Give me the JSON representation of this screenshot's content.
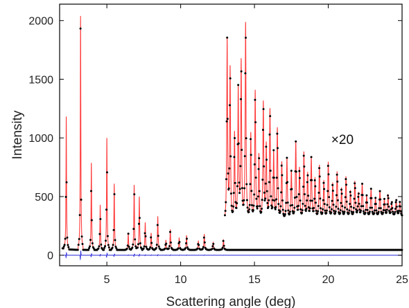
{
  "chart_data": {
    "type": "line",
    "title": "",
    "xlabel": "Scattering angle (deg)",
    "ylabel": "Intensity",
    "xlim": [
      1.8,
      25
    ],
    "ylim": [
      -90,
      2140
    ],
    "x_ticks": [
      5,
      10,
      15,
      20,
      25
    ],
    "y_ticks": [
      0,
      500,
      1000,
      1500,
      2000
    ],
    "grid": false,
    "legend": "none",
    "annotations": [
      {
        "text": "×20",
        "x": 20.2,
        "y": 990
      }
    ],
    "colors": {
      "calculated": "#ff3b3b",
      "observed": "#000000",
      "difference": "#2323d8"
    },
    "series": [
      {
        "role": "calculated",
        "style": "line",
        "peaks_low_angle": [
          {
            "x": 2.25,
            "y": 1190
          },
          {
            "x": 3.22,
            "y": 2040
          },
          {
            "x": 3.95,
            "y": 790
          },
          {
            "x": 4.55,
            "y": 430
          },
          {
            "x": 5.0,
            "y": 1000
          },
          {
            "x": 5.5,
            "y": 610
          },
          {
            "x": 6.45,
            "y": 190
          },
          {
            "x": 6.85,
            "y": 600
          },
          {
            "x": 7.2,
            "y": 500
          },
          {
            "x": 7.6,
            "y": 280
          },
          {
            "x": 8.0,
            "y": 190
          },
          {
            "x": 8.45,
            "y": 330
          },
          {
            "x": 9.0,
            "y": 130
          },
          {
            "x": 9.3,
            "y": 220
          },
          {
            "x": 9.9,
            "y": 150
          },
          {
            "x": 10.4,
            "y": 170
          },
          {
            "x": 11.2,
            "y": 120
          },
          {
            "x": 11.6,
            "y": 180
          },
          {
            "x": 12.2,
            "y": 110
          },
          {
            "x": 12.9,
            "y": 130
          }
        ],
        "baseline_low_angle": 45,
        "scaled_region": {
          "factor": 20,
          "x_start": 13.0,
          "x_end": 25.0,
          "baseline_start": 270,
          "baseline_end": 330,
          "peaks": [
            {
              "x": 13.15,
              "y": 1820
            },
            {
              "x": 13.35,
              "y": 1580
            },
            {
              "x": 13.65,
              "y": 1040
            },
            {
              "x": 13.9,
              "y": 1400
            },
            {
              "x": 14.1,
              "y": 1650
            },
            {
              "x": 14.4,
              "y": 1990
            },
            {
              "x": 14.75,
              "y": 1050
            },
            {
              "x": 15.05,
              "y": 1400
            },
            {
              "x": 15.3,
              "y": 850
            },
            {
              "x": 15.6,
              "y": 1300
            },
            {
              "x": 15.8,
              "y": 920
            },
            {
              "x": 16.05,
              "y": 1230
            },
            {
              "x": 16.3,
              "y": 860
            },
            {
              "x": 16.55,
              "y": 1080
            },
            {
              "x": 16.85,
              "y": 800
            },
            {
              "x": 17.2,
              "y": 830
            },
            {
              "x": 17.5,
              "y": 720
            },
            {
              "x": 17.8,
              "y": 960
            },
            {
              "x": 18.05,
              "y": 730
            },
            {
              "x": 18.35,
              "y": 870
            },
            {
              "x": 18.6,
              "y": 680
            },
            {
              "x": 18.85,
              "y": 820
            },
            {
              "x": 19.1,
              "y": 640
            },
            {
              "x": 19.4,
              "y": 760
            },
            {
              "x": 19.7,
              "y": 620
            },
            {
              "x": 20.0,
              "y": 780
            },
            {
              "x": 20.3,
              "y": 600
            },
            {
              "x": 20.6,
              "y": 700
            },
            {
              "x": 20.9,
              "y": 560
            },
            {
              "x": 21.2,
              "y": 660
            },
            {
              "x": 21.5,
              "y": 540
            },
            {
              "x": 21.8,
              "y": 620
            },
            {
              "x": 22.05,
              "y": 520
            },
            {
              "x": 22.3,
              "y": 600
            },
            {
              "x": 22.6,
              "y": 500
            },
            {
              "x": 22.9,
              "y": 560
            },
            {
              "x": 23.2,
              "y": 480
            },
            {
              "x": 23.5,
              "y": 540
            },
            {
              "x": 23.8,
              "y": 470
            },
            {
              "x": 24.05,
              "y": 510
            },
            {
              "x": 24.3,
              "y": 450
            },
            {
              "x": 24.6,
              "y": 470
            },
            {
              "x": 24.85,
              "y": 450
            }
          ]
        }
      },
      {
        "role": "observed",
        "style": "points"
      },
      {
        "role": "difference",
        "style": "line",
        "offset": 0
      }
    ]
  }
}
